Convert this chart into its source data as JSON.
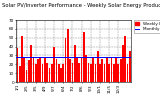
{
  "title": "Solar PV/Inverter Performance - Weekly Solar Energy Production",
  "bar_color": "#ff0000",
  "avg_line_color": "#0000ff",
  "background_color": "#ffffff",
  "grid_color": "#888888",
  "values": [
    38,
    18,
    52,
    28,
    14,
    25,
    42,
    28,
    20,
    26,
    28,
    20,
    28,
    22,
    16,
    20,
    40,
    26,
    20,
    16,
    20,
    50,
    60,
    26,
    22,
    42,
    28,
    22,
    28,
    56,
    30,
    22,
    20,
    28,
    20,
    35,
    20,
    26,
    20,
    28,
    20,
    28,
    20,
    28,
    20,
    26,
    42,
    52,
    20,
    35
  ],
  "yticks": [
    0,
    10,
    20,
    30,
    40,
    50,
    60,
    70
  ],
  "xtick_labels": [
    "1/1",
    "2/5",
    "3/5",
    "4/9",
    "5/7",
    "6/4",
    "7/2",
    "8/6",
    "9/3",
    "10/1",
    "11/5",
    "12/3"
  ],
  "legend_entries": [
    "Weekly kWh",
    "Monthly Avg"
  ],
  "title_fontsize": 3.8,
  "tick_fontsize": 3.0,
  "legend_fontsize": 3.0
}
